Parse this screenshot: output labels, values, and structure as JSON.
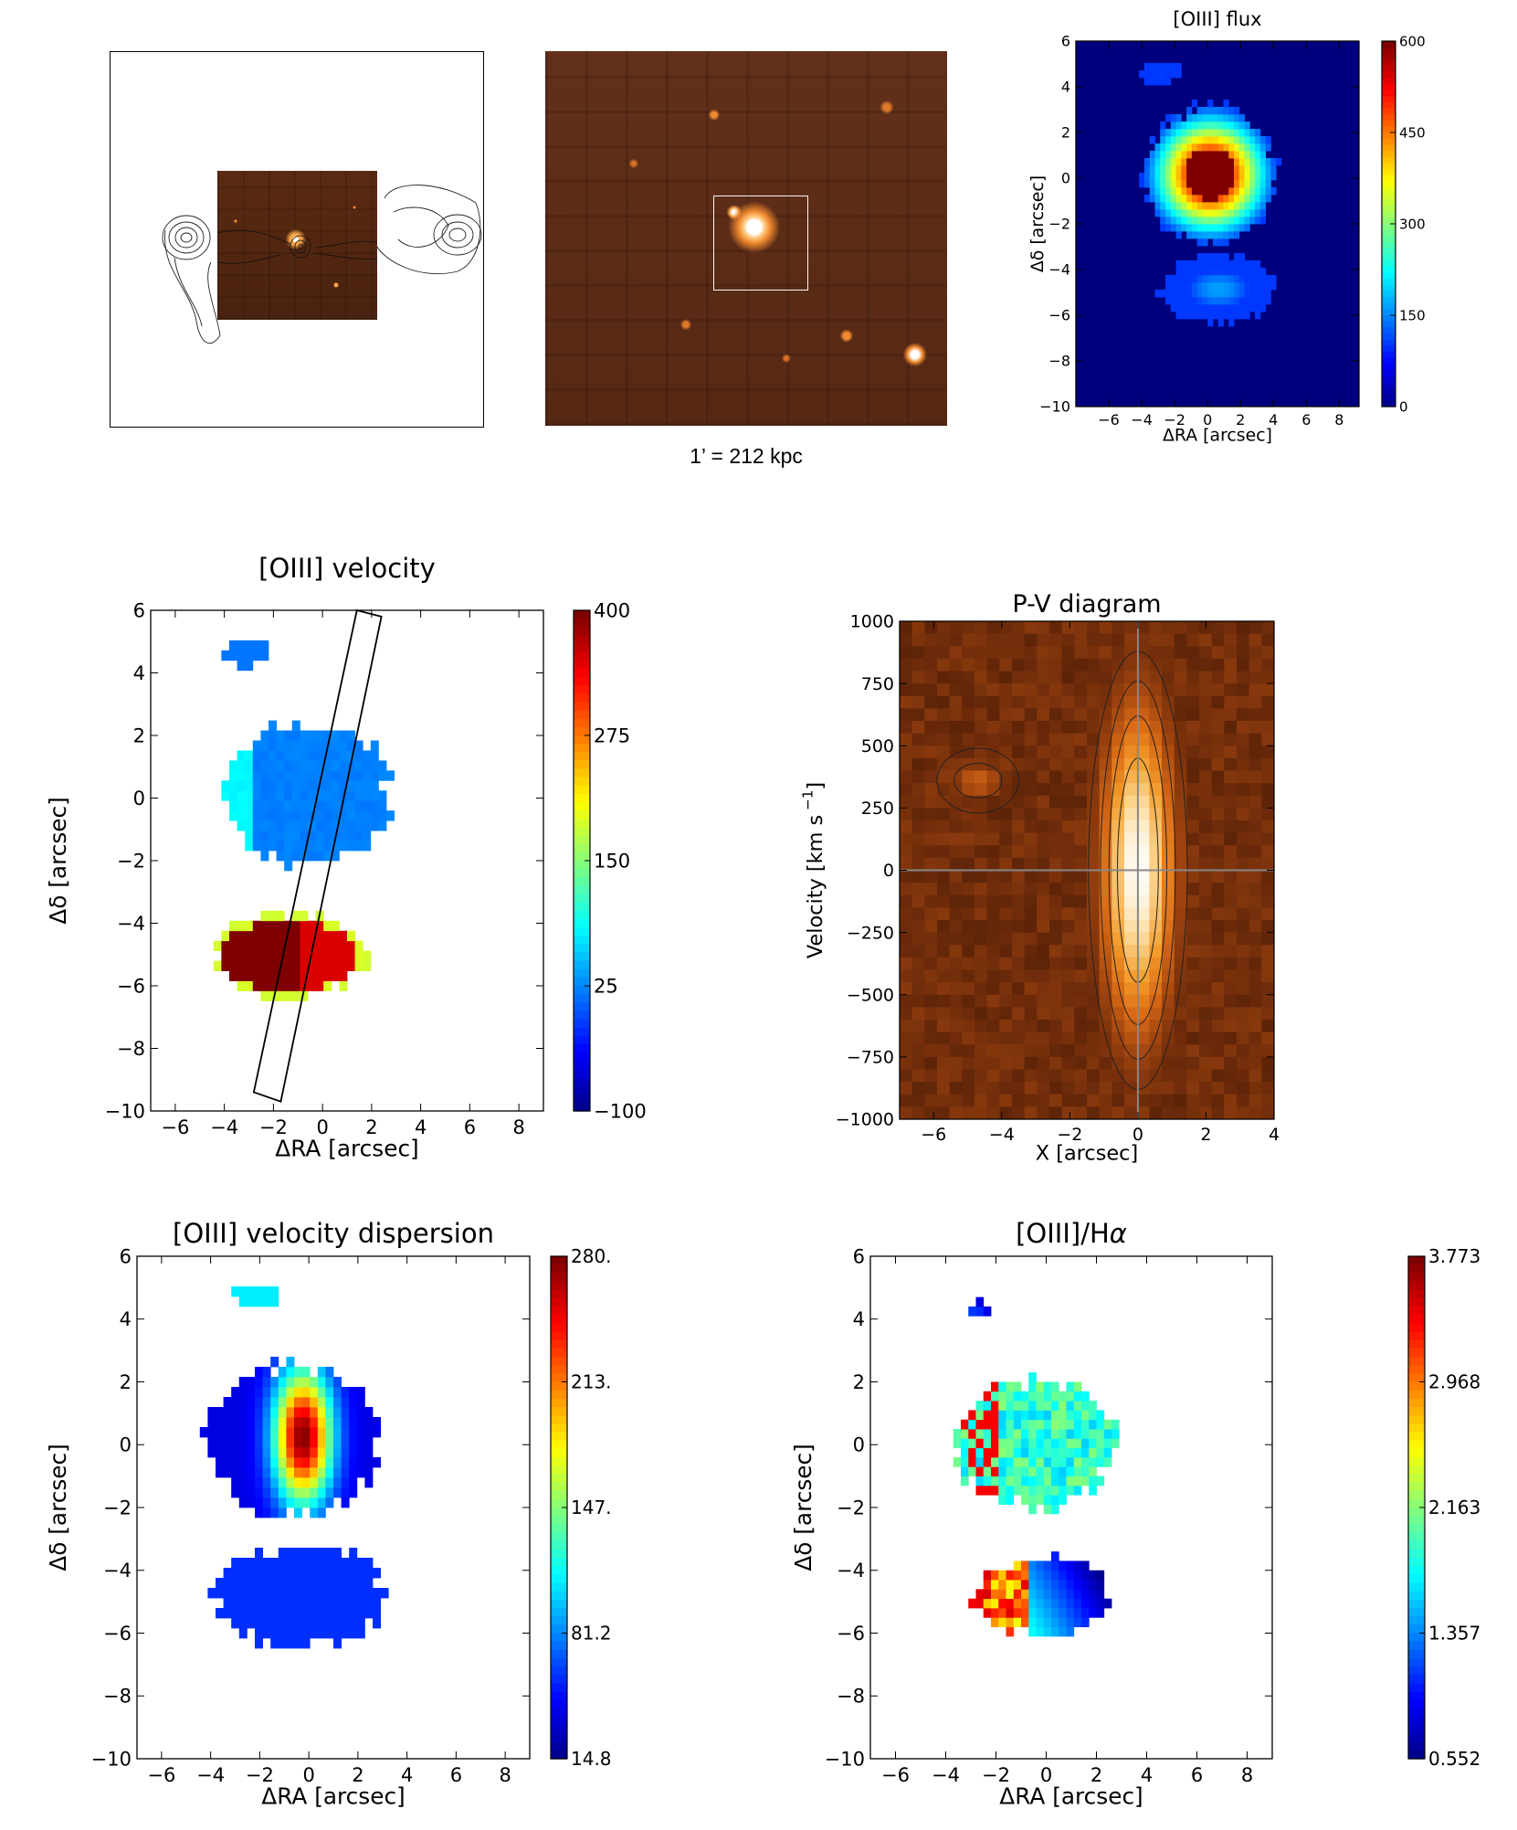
{
  "scale_caption": "1’ = 212 kpc",
  "colors": {
    "jet": [
      "#00007f",
      "#0000ff",
      "#007fff",
      "#00ffff",
      "#7fff7f",
      "#ffff00",
      "#ff7f00",
      "#ff0000",
      "#7f0000"
    ],
    "pv": [
      "#3a1404",
      "#6b2a0a",
      "#a0440f",
      "#d86a16",
      "#f39a2a",
      "#fcd38a",
      "#ffffff"
    ]
  },
  "chart_data": [
    {
      "type": "heatmap",
      "title": "[OIII] flux",
      "xlabel": "ΔRA [arcsec]",
      "ylabel": "Δδ [arcsec]",
      "xlim": [
        -8,
        9.2
      ],
      "ylim": [
        -10,
        6
      ],
      "xticks": [
        "−6",
        "−4",
        "−2",
        "0",
        "2",
        "4",
        "6",
        "8"
      ],
      "yticks": [
        "6",
        "4",
        "2",
        "0",
        "−2",
        "−4",
        "−6",
        "−8",
        "−10"
      ],
      "colorbar": {
        "ticks": [
          "600",
          "450",
          "300",
          "150",
          "0"
        ],
        "range": [
          0,
          600
        ]
      },
      "regions": [
        {
          "cx": 0.0,
          "cy": 0.0,
          "rx": 4.0,
          "ry": 3.0,
          "peak": 600
        },
        {
          "cx": 0.5,
          "cy": -5.0,
          "rx": 3.5,
          "ry": 1.5,
          "peak": 170
        },
        {
          "cx": -3.0,
          "cy": 4.5,
          "rx": 1.3,
          "ry": 0.5,
          "peak": 120
        }
      ]
    },
    {
      "type": "heatmap",
      "title": "[OIII] velocity",
      "xlabel": "ΔRA [arcsec]",
      "ylabel": "Δδ [arcsec]",
      "xlim": [
        -7,
        9
      ],
      "ylim": [
        -10,
        6
      ],
      "xticks": [
        "−6",
        "−4",
        "−2",
        "0",
        "2",
        "4",
        "6",
        "8"
      ],
      "yticks": [
        "6",
        "4",
        "2",
        "0",
        "−2",
        "−4",
        "−6",
        "−8",
        "−10"
      ],
      "colorbar": {
        "ticks": [
          "400",
          "275",
          "150",
          "25",
          "−100"
        ],
        "range": [
          -100,
          400
        ]
      },
      "regions": [
        {
          "cx": -0.8,
          "cy": 0.0,
          "rx": 3.4,
          "ry": 2.2,
          "value": 20
        },
        {
          "cx": -1.5,
          "cy": -5.2,
          "rx": 3.2,
          "ry": 1.3,
          "value": 400
        },
        {
          "cx": -3.3,
          "cy": 4.5,
          "rx": 1.1,
          "ry": 0.4,
          "value": 20
        }
      ],
      "slit": {
        "corners": [
          [
            -1.7,
            -9.7
          ],
          [
            2.4,
            5.8
          ],
          [
            1.4,
            6.0
          ],
          [
            -2.8,
            -9.4
          ]
        ]
      }
    },
    {
      "type": "heatmap",
      "title": "P-V diagram",
      "xlabel": "X [arcsec]",
      "ylabel": "Velocity [km s",
      "ylabel_sup": "−1",
      "ylabel_end": "]",
      "xlim": [
        -7,
        4
      ],
      "ylim": [
        -1000,
        1000
      ],
      "xticks": [
        "−6",
        "−4",
        "−2",
        "0",
        "2",
        "4"
      ],
      "yticks": [
        "1000",
        "750",
        "500",
        "250",
        "0",
        "−250",
        "−500",
        "−750",
        "−1000"
      ],
      "regions": [
        {
          "cx": 0.0,
          "cy": 0,
          "rx": 1.3,
          "ry": 900,
          "peak": 1.0
        },
        {
          "cx": -4.7,
          "cy": 360,
          "rx": 1.0,
          "ry": 110,
          "peak": 0.45
        }
      ]
    },
    {
      "type": "heatmap",
      "title": "[OIII] velocity dispersion",
      "xlabel": "ΔRA [arcsec]",
      "ylabel": "Δδ [arcsec]",
      "xlim": [
        -7,
        9
      ],
      "ylim": [
        -10,
        6
      ],
      "xticks": [
        "−6",
        "−4",
        "−2",
        "0",
        "2",
        "4",
        "6",
        "8"
      ],
      "yticks": [
        "6",
        "4",
        "2",
        "0",
        "−2",
        "−4",
        "−6",
        "−8",
        "−10"
      ],
      "colorbar": {
        "ticks": [
          "280.",
          "213.",
          "147.",
          "81.2",
          "14.8"
        ],
        "range": [
          14.8,
          280
        ]
      },
      "regions": [
        {
          "cx": -0.8,
          "cy": 0.0,
          "rx": 3.5,
          "ry": 2.4,
          "peak": 280
        },
        {
          "cx": -0.5,
          "cy": -5.0,
          "rx": 3.5,
          "ry": 1.6,
          "value": 60
        },
        {
          "cx": -2.3,
          "cy": 4.6,
          "rx": 1.0,
          "ry": 0.4,
          "value": 110
        }
      ]
    },
    {
      "type": "heatmap",
      "title": "[OIII]/H",
      "title_symbol": "α",
      "xlabel": "ΔRA [arcsec]",
      "ylabel": "Δδ [arcsec]",
      "xlim": [
        -7,
        9
      ],
      "ylim": [
        -10,
        6
      ],
      "xticks": [
        "−6",
        "−4",
        "−2",
        "0",
        "2",
        "4",
        "6",
        "8"
      ],
      "yticks": [
        "6",
        "4",
        "2",
        "0",
        "−2",
        "−4",
        "−6",
        "−8",
        "−10"
      ],
      "colorbar": {
        "ticks": [
          "3.773",
          "2.968",
          "2.163",
          "1.357",
          "0.552"
        ],
        "range": [
          0.552,
          3.773
        ]
      },
      "regions": [
        {
          "cx": -0.6,
          "cy": -0.1,
          "rx": 3.2,
          "ry": 2.0,
          "value": 1.9
        },
        {
          "cx": -0.3,
          "cy": -5.0,
          "rx": 2.6,
          "ry": 1.3,
          "value": 2.0
        },
        {
          "cx": -2.8,
          "cy": 4.2,
          "rx": 0.4,
          "ry": 0.2,
          "value": 0.9
        }
      ]
    }
  ]
}
